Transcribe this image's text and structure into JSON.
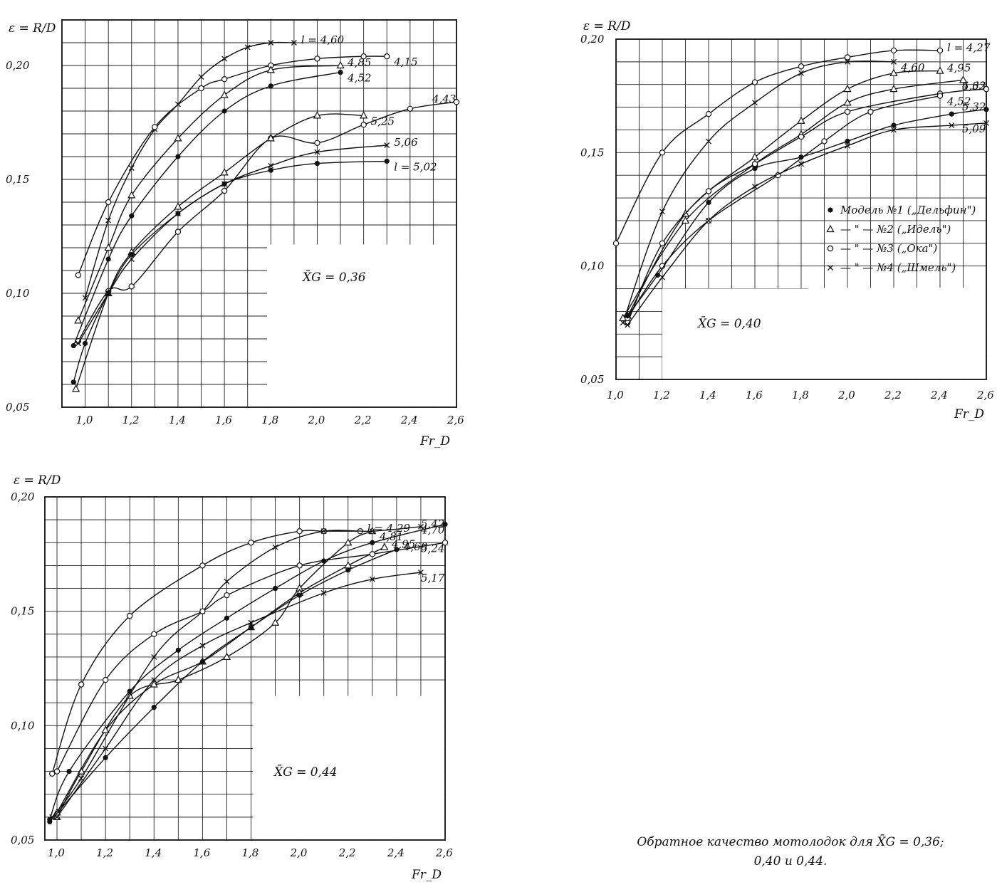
{
  "caption": {
    "line1": "Обратное  качество мотолодок  для  X̄G = 0,36;",
    "line2": "0,40  и  0,44."
  },
  "legend": [
    {
      "marker": "dot",
      "text": "Модель №1 („Дельфин\")"
    },
    {
      "marker": "triangle",
      "text": "— \" — №2 („Идель\")"
    },
    {
      "marker": "circle",
      "text": "— \" — №3 („Ока\")"
    },
    {
      "marker": "cross",
      "text": "— \" — №4 („Шмель\")"
    }
  ],
  "chart_data": [
    {
      "type": "line",
      "ylabel": "ε = R/D",
      "xlabel": "Fr_D",
      "annotation": "X̄G = 0,36",
      "xlim": [
        0.9,
        2.6
      ],
      "ylim": [
        0.05,
        0.22
      ],
      "xticks": [
        "1,0",
        "1,2",
        "1,4",
        "1,6",
        "1,8",
        "2,0",
        "2,2",
        "2,4",
        "2,6"
      ],
      "yticks": [
        "0,05",
        "0,10",
        "0,15",
        "0,20"
      ],
      "series": [
        {
          "model": 4,
          "label": "l = 4,60",
          "x": [
            1.0,
            1.1,
            1.2,
            1.3,
            1.4,
            1.5,
            1.6,
            1.7,
            1.8,
            1.9
          ],
          "y": [
            0.098,
            0.132,
            0.155,
            0.172,
            0.183,
            0.195,
            0.203,
            0.208,
            0.21,
            0.21
          ]
        },
        {
          "model": 3,
          "label": "4,15",
          "x": [
            0.97,
            1.1,
            1.3,
            1.5,
            1.6,
            1.8,
            2.0,
            2.2,
            2.3
          ],
          "y": [
            0.108,
            0.14,
            0.173,
            0.19,
            0.194,
            0.2,
            0.203,
            0.204,
            0.204
          ]
        },
        {
          "model": 2,
          "label": "4,85",
          "x": [
            0.97,
            1.1,
            1.2,
            1.4,
            1.6,
            1.8,
            2.1
          ],
          "y": [
            0.088,
            0.12,
            0.143,
            0.168,
            0.187,
            0.198,
            0.2
          ]
        },
        {
          "model": 1,
          "label": "4,52",
          "x": [
            0.95,
            1.1,
            1.2,
            1.4,
            1.6,
            1.8,
            2.1
          ],
          "y": [
            0.077,
            0.115,
            0.134,
            0.16,
            0.18,
            0.191,
            0.197
          ]
        },
        {
          "model": 3,
          "label": "4,43",
          "x": [
            0.97,
            1.1,
            1.2,
            1.4,
            1.6,
            1.8,
            2.0,
            2.2,
            2.4,
            2.6
          ],
          "y": [
            0.079,
            0.101,
            0.103,
            0.127,
            0.145,
            0.168,
            0.166,
            0.174,
            0.181,
            0.184
          ]
        },
        {
          "model": 2,
          "label": "5,25",
          "x": [
            0.96,
            1.1,
            1.2,
            1.4,
            1.6,
            1.8,
            2.0,
            2.2
          ],
          "y": [
            0.058,
            0.1,
            0.118,
            0.138,
            0.153,
            0.168,
            0.178,
            0.178
          ]
        },
        {
          "model": 4,
          "label": "5,06",
          "x": [
            0.97,
            1.1,
            1.2,
            1.4,
            1.6,
            1.8,
            2.0,
            2.3
          ],
          "y": [
            0.078,
            0.1,
            0.115,
            0.135,
            0.148,
            0.156,
            0.162,
            0.165
          ]
        },
        {
          "model": 1,
          "label": "l = 5,02",
          "x": [
            0.95,
            1.0,
            1.1,
            1.2,
            1.4,
            1.6,
            1.8,
            2.0,
            2.3
          ],
          "y": [
            0.061,
            0.078,
            0.1,
            0.117,
            0.135,
            0.148,
            0.154,
            0.157,
            0.158
          ]
        }
      ]
    },
    {
      "type": "line",
      "ylabel": "ε = R/D",
      "xlabel": "Fr_D",
      "annotation": "X̄G = 0,40",
      "xlim": [
        1.0,
        2.6
      ],
      "ylim": [
        0.05,
        0.2
      ],
      "xticks": [
        "1,0",
        "1,2",
        "1,4",
        "1,6",
        "1,8",
        "2,0",
        "2,2",
        "2,4",
        "2,6"
      ],
      "yticks": [
        "0,05",
        "0,10",
        "0,15",
        "0,20"
      ],
      "series": [
        {
          "model": 3,
          "label": "l = 4,27",
          "x": [
            1.0,
            1.2,
            1.4,
            1.6,
            1.8,
            2.0,
            2.2,
            2.4
          ],
          "y": [
            0.11,
            0.15,
            0.167,
            0.181,
            0.188,
            0.192,
            0.195,
            0.195
          ]
        },
        {
          "model": 4,
          "label": "4,60",
          "x": [
            1.03,
            1.2,
            1.4,
            1.6,
            1.8,
            2.0,
            2.2
          ],
          "y": [
            0.075,
            0.124,
            0.155,
            0.172,
            0.185,
            0.19,
            0.19
          ]
        },
        {
          "model": 2,
          "label": "4,95",
          "x": [
            1.05,
            1.3,
            1.6,
            1.8,
            2.0,
            2.2,
            2.4
          ],
          "y": [
            0.078,
            0.123,
            0.148,
            0.164,
            0.178,
            0.185,
            0.186
          ]
        },
        {
          "model": 2,
          "label": "4,63",
          "x": [
            1.03,
            1.3,
            1.6,
            1.8,
            2.0,
            2.2,
            2.5
          ],
          "y": [
            0.077,
            0.12,
            0.145,
            0.158,
            0.172,
            0.178,
            0.182
          ]
        },
        {
          "model": 3,
          "label": "5,32",
          "x": [
            1.05,
            1.2,
            1.4,
            1.6,
            1.8,
            2.0,
            2.4,
            2.6
          ],
          "y": [
            0.075,
            0.11,
            0.133,
            0.145,
            0.157,
            0.168,
            0.176,
            0.178
          ]
        },
        {
          "model": 3,
          "label": "4,52",
          "x": [
            1.05,
            1.2,
            1.4,
            1.7,
            1.9,
            2.1,
            2.4
          ],
          "y": [
            0.077,
            0.1,
            0.12,
            0.14,
            0.155,
            0.168,
            0.175
          ]
        },
        {
          "model": 1,
          "label": "5,32",
          "x": [
            1.05,
            1.18,
            1.4,
            1.6,
            1.8,
            2.0,
            2.2,
            2.45,
            2.6
          ],
          "y": [
            0.078,
            0.096,
            0.128,
            0.143,
            0.148,
            0.155,
            0.162,
            0.167,
            0.169
          ]
        },
        {
          "model": 4,
          "label": "5,09",
          "x": [
            1.05,
            1.2,
            1.4,
            1.6,
            1.8,
            2.0,
            2.2,
            2.45,
            2.6
          ],
          "y": [
            0.074,
            0.095,
            0.12,
            0.135,
            0.145,
            0.153,
            0.16,
            0.162,
            0.163
          ]
        }
      ]
    },
    {
      "type": "line",
      "ylabel": "ε = R/D",
      "xlabel": "Fr_D",
      "annotation": "X̄G = 0,44",
      "xlim": [
        0.95,
        2.6
      ],
      "ylim": [
        0.05,
        0.2
      ],
      "xticks": [
        "1,0",
        "1,2",
        "1,4",
        "1,6",
        "1,8",
        "2,0",
        "2,2",
        "2,4",
        "2,6"
      ],
      "yticks": [
        "0,05",
        "0,10",
        "0,15",
        "0,20"
      ],
      "series": [
        {
          "model": 3,
          "label": "l = 4,29",
          "x": [
            0.98,
            1.1,
            1.3,
            1.6,
            1.8,
            2.0,
            2.1,
            2.25
          ],
          "y": [
            0.079,
            0.118,
            0.148,
            0.17,
            0.18,
            0.185,
            0.185,
            0.185
          ]
        },
        {
          "model": 2,
          "label": "4,81",
          "x": [
            1.0,
            1.1,
            1.3,
            1.5,
            1.7,
            1.9,
            2.0,
            2.2,
            2.3
          ],
          "y": [
            0.06,
            0.08,
            0.113,
            0.12,
            0.13,
            0.145,
            0.16,
            0.18,
            0.185
          ]
        },
        {
          "model": 2,
          "label": "4,95",
          "x": [
            1.0,
            1.2,
            1.4,
            1.6,
            1.8,
            2.0,
            2.2,
            2.35
          ],
          "y": [
            0.062,
            0.098,
            0.118,
            0.128,
            0.143,
            0.158,
            0.17,
            0.178
          ]
        },
        {
          "model": 1,
          "label": "4,70",
          "x": [
            0.97,
            1.05,
            1.3,
            1.5,
            1.7,
            1.9,
            2.1,
            2.3,
            2.6
          ],
          "y": [
            0.059,
            0.08,
            0.115,
            0.133,
            0.147,
            0.16,
            0.172,
            0.18,
            0.188
          ]
        },
        {
          "model": 4,
          "label": "5,42",
          "x": [
            0.98,
            1.1,
            1.4,
            1.6,
            1.7,
            1.9,
            2.1,
            2.3,
            2.5
          ],
          "y": [
            0.06,
            0.077,
            0.13,
            0.15,
            0.163,
            0.178,
            0.185,
            0.185,
            0.187
          ]
        },
        {
          "model": 3,
          "label": "5,24",
          "x": [
            1.0,
            1.2,
            1.4,
            1.6,
            1.7,
            2.0,
            2.3,
            2.6
          ],
          "y": [
            0.08,
            0.12,
            0.14,
            0.15,
            0.157,
            0.17,
            0.175,
            0.18
          ]
        },
        {
          "model": 1,
          "label": "4,60",
          "x": [
            0.97,
            1.2,
            1.4,
            1.6,
            1.8,
            2.0,
            2.2,
            2.4
          ],
          "y": [
            0.058,
            0.086,
            0.108,
            0.128,
            0.143,
            0.157,
            0.168,
            0.177
          ]
        },
        {
          "model": 4,
          "label": "5,17",
          "x": [
            1.0,
            1.2,
            1.4,
            1.6,
            1.8,
            2.1,
            2.3,
            2.5
          ],
          "y": [
            0.06,
            0.09,
            0.12,
            0.135,
            0.145,
            0.158,
            0.164,
            0.167
          ]
        }
      ]
    }
  ]
}
